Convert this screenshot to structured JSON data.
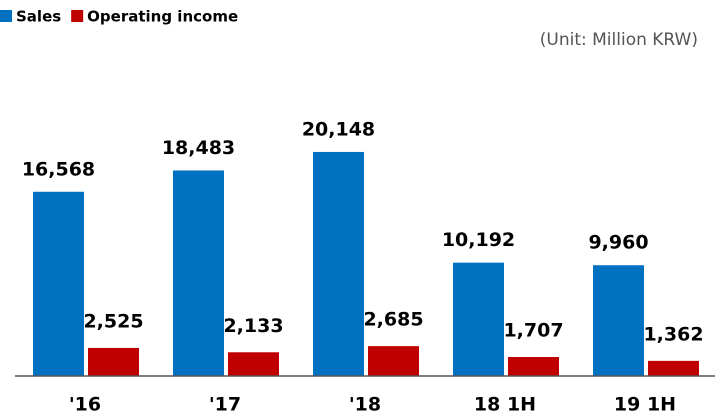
{
  "chart_data": {
    "type": "bar",
    "annotation": "(Unit: Million KRW)",
    "categories": [
      "'16",
      "'17",
      "'18",
      "18 1H",
      "19 1H"
    ],
    "series": [
      {
        "name": "Sales",
        "color": "#0070c0",
        "values": [
          16568,
          18483,
          20148,
          10192,
          9960
        ],
        "value_labels": [
          "16,568",
          "18,483",
          "20,148",
          "10,192",
          "9,960"
        ]
      },
      {
        "name": "Operating income",
        "color": "#c00000",
        "values": [
          2525,
          2133,
          2685,
          1707,
          1362
        ],
        "value_labels": [
          "2,525",
          "2,133",
          "2,685",
          "1,707",
          "1,362"
        ]
      }
    ],
    "ylim": [
      0,
      25000
    ],
    "legend": "top-left"
  }
}
